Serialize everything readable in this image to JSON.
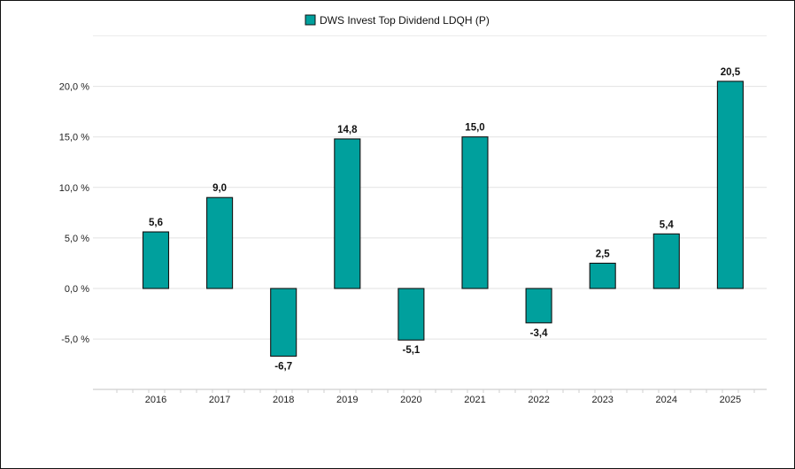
{
  "chart_data": {
    "type": "bar",
    "title": "",
    "xlabel": "",
    "ylabel": "",
    "categories": [
      "2016",
      "2017",
      "2018",
      "2019",
      "2020",
      "2021",
      "2022",
      "2023",
      "2024",
      "2025"
    ],
    "series": [
      {
        "name": "DWS Invest Top Dividend LDQH (P)",
        "values": [
          5.6,
          9.0,
          -6.7,
          14.8,
          -5.1,
          15.0,
          -3.4,
          2.5,
          5.4,
          20.5
        ]
      }
    ],
    "data_labels": [
      "5,6",
      "9,0",
      "-6,7",
      "14,8",
      "-5,1",
      "15,0",
      "-3,4",
      "2,5",
      "5,4",
      "20,5"
    ],
    "y_ticks": [
      -5,
      0,
      5,
      10,
      15,
      20
    ],
    "y_tick_labels": [
      "-5,0 %",
      "0,0 %",
      "5,0 %",
      "10,0 %",
      "15,0 %",
      "20,0 %"
    ],
    "ylim": [
      -10,
      25
    ],
    "grid": true,
    "legend_position": "top-center",
    "bar_color": "#00A09D",
    "bar_stroke": "#111111"
  }
}
